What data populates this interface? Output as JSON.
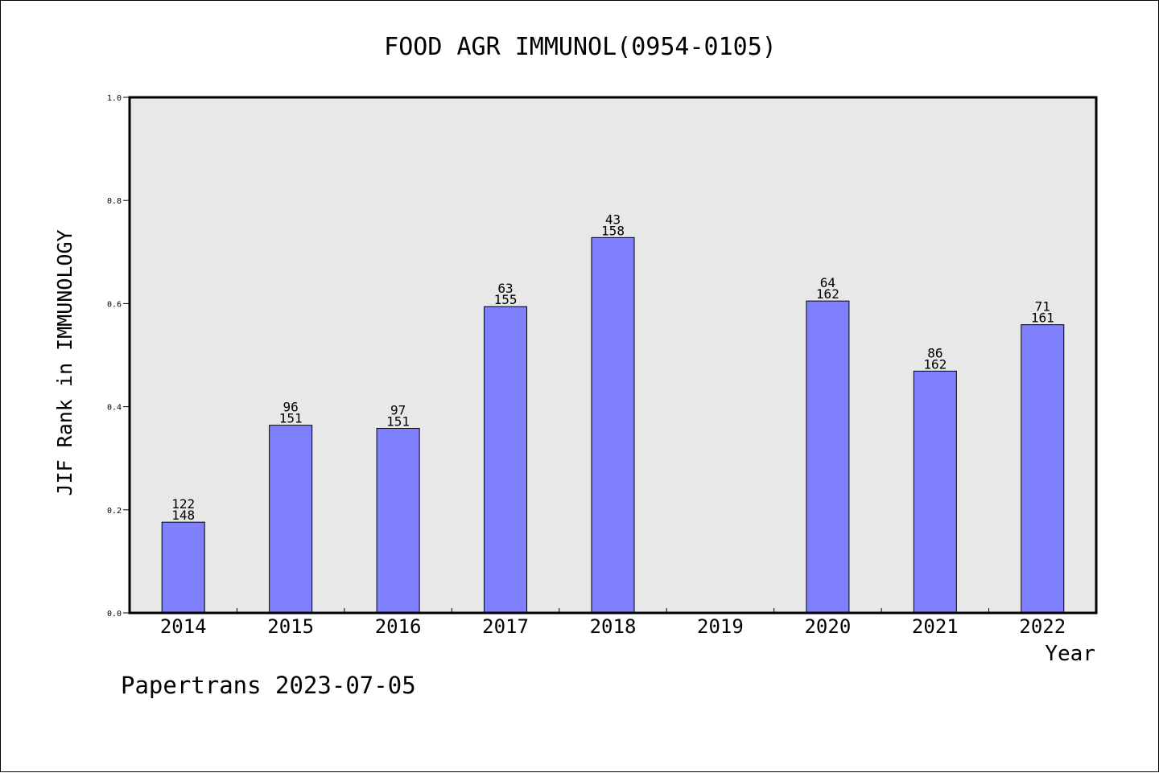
{
  "chart_data": {
    "type": "bar",
    "title": "FOOD AGR IMMUNOL(0954-0105)",
    "xlabel": "Year",
    "ylabel": "JIF Rank in IMMUNOLOGY",
    "ylim": [
      0,
      1.0
    ],
    "yticks": [
      "0.0",
      "0.2",
      "0.4",
      "0.6",
      "0.8",
      "1.0"
    ],
    "grid": false,
    "legend": "none",
    "categories": [
      "2014",
      "2015",
      "2016",
      "2017",
      "2018",
      "2019",
      "2020",
      "2021",
      "2022"
    ],
    "ranks": [
      122,
      96,
      97,
      63,
      43,
      null,
      64,
      86,
      71
    ],
    "totals": [
      148,
      151,
      151,
      155,
      158,
      null,
      162,
      162,
      161
    ],
    "values": [
      0.176,
      0.364,
      0.358,
      0.594,
      0.728,
      null,
      0.605,
      0.469,
      0.559
    ],
    "colors": {
      "bar": "#8080ff",
      "plot_bg": "#e8e8e8"
    }
  },
  "footer": {
    "text": "Papertrans 2023-07-05"
  }
}
